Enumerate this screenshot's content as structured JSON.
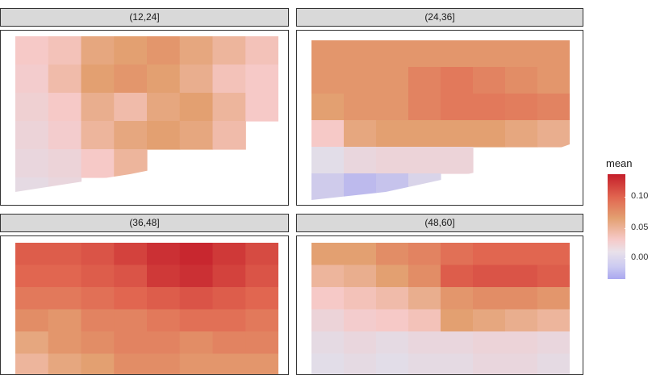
{
  "chart_data": {
    "type": "heatmap",
    "facet_variable_values": [
      "(12,24]",
      "(24,36]",
      "(36,48]",
      "(48,60]"
    ],
    "legend": {
      "title": "mean",
      "tick_labels": [
        "0.10",
        "0.05",
        "0.00"
      ],
      "tick_values": [
        0.1,
        0.05,
        0.0
      ],
      "value_range": [
        -0.03,
        0.13
      ]
    },
    "color_scale": {
      "stops": [
        {
          "value": -0.03,
          "color": "#aaa8f0"
        },
        {
          "value": 0.0,
          "color": "#e2dde8"
        },
        {
          "value": 0.03,
          "color": "#f6c9c7"
        },
        {
          "value": 0.06,
          "color": "#e3a071"
        },
        {
          "value": 0.09,
          "color": "#e16650"
        },
        {
          "value": 0.13,
          "color": "#c41e2a"
        }
      ]
    },
    "panels": [
      {
        "label": "(12,24]",
        "mean_grid": [
          [
            0.03,
            0.035,
            0.055,
            0.06,
            0.065,
            0.055,
            0.045,
            0.035
          ],
          [
            0.025,
            0.04,
            0.06,
            0.065,
            0.06,
            0.05,
            0.035,
            0.03
          ],
          [
            0.02,
            0.03,
            0.05,
            0.04,
            0.055,
            0.06,
            0.045,
            0.03
          ],
          [
            0.015,
            0.025,
            0.045,
            0.055,
            0.06,
            0.055,
            0.04,
            null
          ],
          [
            0.01,
            0.015,
            0.03,
            0.045,
            null,
            null,
            null,
            null
          ],
          [
            0.005,
            0.01,
            null,
            null,
            null,
            null,
            null,
            null
          ]
        ]
      },
      {
        "label": "(24,36]",
        "mean_grid": [
          [
            0.065,
            0.065,
            0.065,
            0.065,
            0.065,
            0.065,
            0.065,
            0.065
          ],
          [
            0.065,
            0.065,
            0.065,
            0.075,
            0.08,
            0.075,
            0.07,
            0.065
          ],
          [
            0.06,
            0.065,
            0.065,
            0.075,
            0.08,
            0.08,
            0.078,
            0.075
          ],
          [
            0.03,
            0.055,
            0.06,
            0.06,
            0.06,
            0.06,
            0.055,
            0.05
          ],
          [
            0.0,
            0.01,
            0.015,
            0.015,
            0.015,
            null,
            null,
            null
          ],
          [
            -0.01,
            -0.02,
            -0.015,
            -0.005,
            null,
            null,
            null,
            null
          ]
        ]
      },
      {
        "label": "(36,48]",
        "mean_grid": [
          [
            0.095,
            0.095,
            0.1,
            0.11,
            0.12,
            0.125,
            0.115,
            0.105
          ],
          [
            0.09,
            0.09,
            0.095,
            0.1,
            0.115,
            0.12,
            0.11,
            0.1
          ],
          [
            0.08,
            0.08,
            0.085,
            0.09,
            0.095,
            0.1,
            0.095,
            0.09
          ],
          [
            0.07,
            0.065,
            0.075,
            0.075,
            0.08,
            0.085,
            0.085,
            0.08
          ],
          [
            0.055,
            0.065,
            0.07,
            0.075,
            0.075,
            0.07,
            0.075,
            0.075
          ],
          [
            0.045,
            0.055,
            0.06,
            0.07,
            0.07,
            0.065,
            0.065,
            0.065
          ]
        ]
      },
      {
        "label": "(48,60]",
        "mean_grid": [
          [
            0.06,
            0.06,
            0.07,
            0.075,
            0.085,
            0.09,
            0.09,
            0.09
          ],
          [
            0.045,
            0.05,
            0.06,
            0.07,
            0.095,
            0.1,
            0.1,
            0.095
          ],
          [
            0.03,
            0.035,
            0.04,
            0.05,
            0.065,
            0.07,
            0.07,
            0.065
          ],
          [
            0.015,
            0.025,
            0.03,
            0.035,
            0.06,
            0.055,
            0.05,
            0.045
          ],
          [
            0.005,
            0.01,
            0.005,
            0.01,
            0.01,
            0.015,
            0.015,
            0.01
          ],
          [
            0.0,
            0.005,
            0.0,
            0.005,
            0.005,
            0.01,
            0.01,
            0.005
          ]
        ]
      }
    ]
  }
}
